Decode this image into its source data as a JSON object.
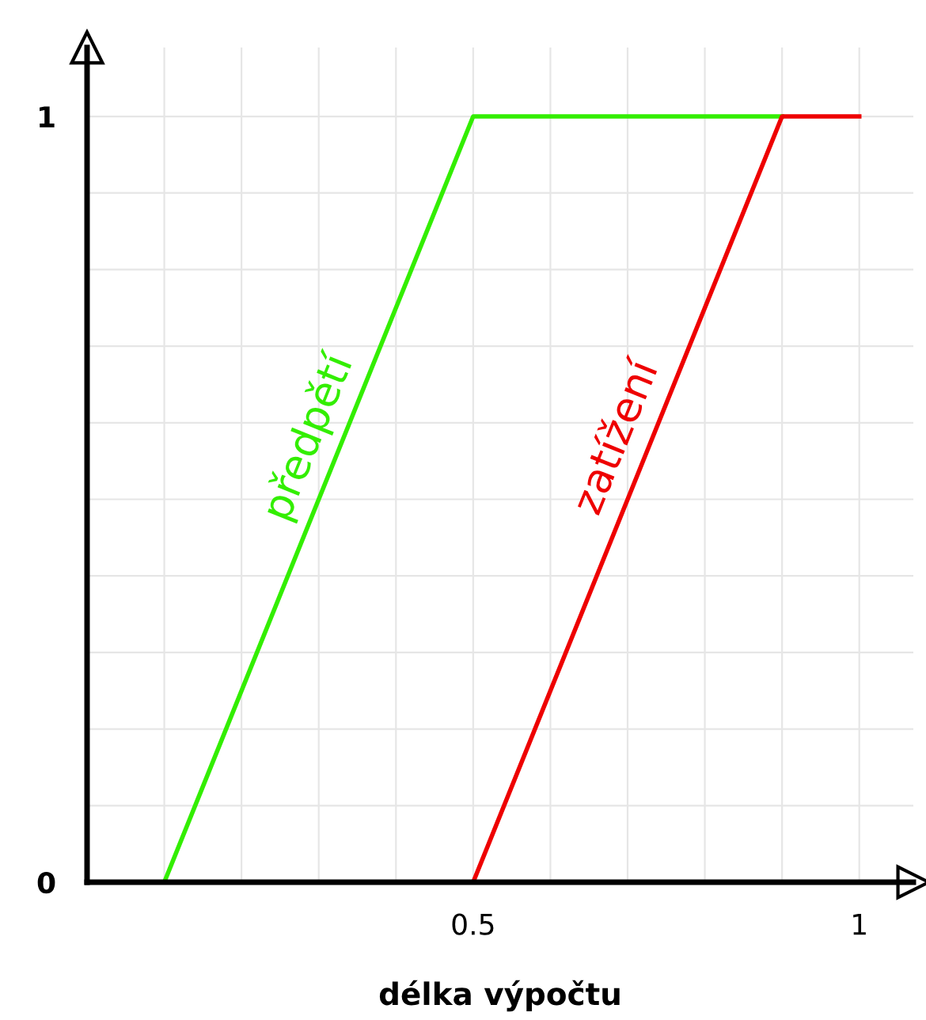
{
  "chart_data": {
    "type": "line",
    "xlabel": "délka výpočtu",
    "series": [
      {
        "name": "předpětí",
        "color": "#33ee00",
        "x": [
          0.1,
          0.5,
          0.9
        ],
        "values": [
          0,
          1,
          1
        ]
      },
      {
        "name": "zatížení",
        "color": "#ee0000",
        "x": [
          0.5,
          0.9,
          1.0
        ],
        "values": [
          0,
          1,
          1
        ]
      }
    ],
    "xlim": [
      0,
      1.07
    ],
    "ylim": [
      0,
      1.09
    ],
    "xticks": [
      {
        "value": 0,
        "label": null
      },
      {
        "value": 0.1,
        "label": null
      },
      {
        "value": 0.2,
        "label": null
      },
      {
        "value": 0.3,
        "label": null
      },
      {
        "value": 0.4,
        "label": null
      },
      {
        "value": 0.5,
        "label": "0.5"
      },
      {
        "value": 0.6,
        "label": null
      },
      {
        "value": 0.7,
        "label": null
      },
      {
        "value": 0.8,
        "label": null
      },
      {
        "value": 0.9,
        "label": null
      },
      {
        "value": 1,
        "label": "1"
      }
    ],
    "yticks": [
      {
        "value": 0,
        "label": "0"
      },
      {
        "value": 0.1,
        "label": null
      },
      {
        "value": 0.2,
        "label": null
      },
      {
        "value": 0.3,
        "label": null
      },
      {
        "value": 0.4,
        "label": null
      },
      {
        "value": 0.5,
        "label": null
      },
      {
        "value": 0.6,
        "label": null
      },
      {
        "value": 0.7,
        "label": null
      },
      {
        "value": 0.8,
        "label": null
      },
      {
        "value": 0.9,
        "label": null
      },
      {
        "value": 1,
        "label": "1"
      }
    ],
    "grid": true,
    "legend": false,
    "marker": "none",
    "line_style": "solid"
  }
}
